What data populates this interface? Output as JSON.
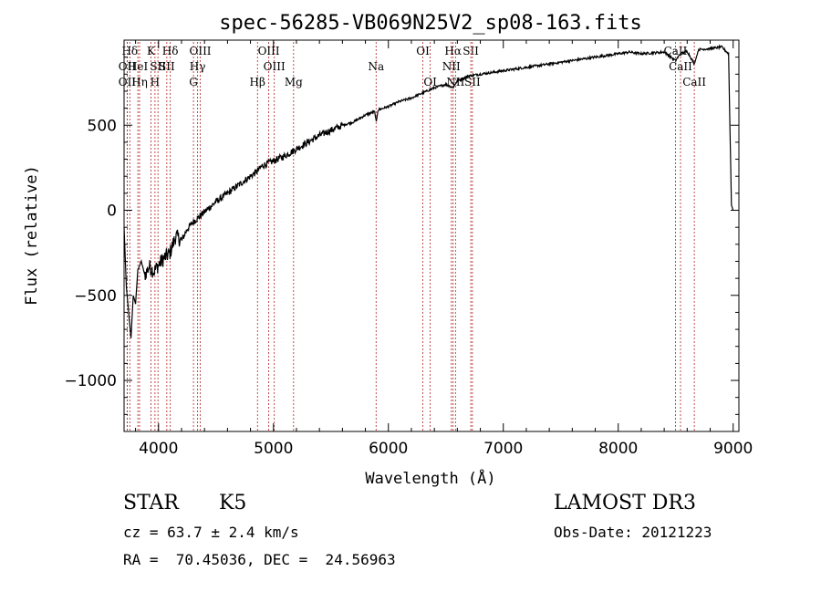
{
  "chart_data": {
    "type": "line",
    "title": "spec-56285-VB069N25V2_sp08-163.fits",
    "xlabel": "Wavelength (Å)",
    "ylabel": "Flux (relative)",
    "xlim": [
      3700,
      9050
    ],
    "ylim": [
      -1300,
      1000
    ],
    "x_ticks": [
      4000,
      5000,
      6000,
      7000,
      8000,
      9000
    ],
    "y_ticks": [
      -1000,
      -500,
      0,
      500
    ],
    "series": [
      {
        "name": "flux",
        "x": [
          3700,
          3720,
          3740,
          3760,
          3780,
          3800,
          3820,
          3850,
          3880,
          3920,
          3960,
          4000,
          4050,
          4100,
          4150,
          4200,
          4250,
          4300,
          4350,
          4400,
          4450,
          4500,
          4600,
          4700,
          4800,
          4860,
          4900,
          5000,
          5100,
          5200,
          5300,
          5400,
          5500,
          5600,
          5700,
          5800,
          5880,
          5895,
          5910,
          6000,
          6100,
          6200,
          6300,
          6400,
          6500,
          6563,
          6600,
          6700,
          6800,
          6900,
          7000,
          7100,
          7200,
          7300,
          7400,
          7500,
          7600,
          7700,
          7800,
          7900,
          8000,
          8100,
          8200,
          8300,
          8400,
          8498,
          8542,
          8600,
          8662,
          8700,
          8800,
          8900,
          8960,
          8985,
          9000
        ],
        "y": [
          -100,
          -450,
          -600,
          -750,
          -500,
          -550,
          -350,
          -300,
          -380,
          -330,
          -360,
          -320,
          -280,
          -250,
          -150,
          -180,
          -110,
          -70,
          -40,
          -10,
          20,
          50,
          100,
          150,
          200,
          230,
          260,
          290,
          320,
          360,
          400,
          440,
          470,
          500,
          520,
          560,
          580,
          520,
          590,
          610,
          640,
          660,
          690,
          720,
          740,
          720,
          760,
          790,
          800,
          810,
          820,
          830,
          840,
          850,
          860,
          870,
          880,
          890,
          900,
          910,
          920,
          930,
          920,
          925,
          930,
          880,
          920,
          935,
          860,
          945,
          950,
          960,
          920,
          30,
          0
        ]
      }
    ],
    "emission_lines": [
      {
        "label": "Hδ",
        "x": 3750,
        "row": 1
      },
      {
        "label": "OII",
        "x": 3727,
        "row": 2
      },
      {
        "label": "OII",
        "x": 3727,
        "row": 3
      },
      {
        "label": "HeI",
        "x": 3820,
        "row": 2
      },
      {
        "label": "Hη",
        "x": 3835,
        "row": 3
      },
      {
        "label": "K",
        "x": 3934,
        "row": 1
      },
      {
        "label": "SII",
        "x": 3995,
        "row": 2
      },
      {
        "label": "H",
        "x": 3969,
        "row": 3
      },
      {
        "label": "Hδ",
        "x": 4102,
        "row": 1
      },
      {
        "label": "SII",
        "x": 4072,
        "row": 2
      },
      {
        "label": "OIII",
        "x": 4363,
        "row": 1
      },
      {
        "label": "Hγ",
        "x": 4340,
        "row": 2
      },
      {
        "label": "G",
        "x": 4304,
        "row": 3
      },
      {
        "label": "Hβ",
        "x": 4861,
        "row": 3
      },
      {
        "label": "OIII",
        "x": 4959,
        "row": 1
      },
      {
        "label": "OIII",
        "x": 5007,
        "row": 2
      },
      {
        "label": "Mg",
        "x": 5175,
        "row": 3
      },
      {
        "label": "Na",
        "x": 5893,
        "row": 2
      },
      {
        "label": "OI",
        "x": 6300,
        "row": 1
      },
      {
        "label": "OI",
        "x": 6364,
        "row": 3
      },
      {
        "label": "Hα",
        "x": 6563,
        "row": 1
      },
      {
        "label": "NII",
        "x": 6548,
        "row": 2
      },
      {
        "label": "NII",
        "x": 6584,
        "row": 3
      },
      {
        "label": "SII",
        "x": 6717,
        "row": 1
      },
      {
        "label": "SII",
        "x": 6731,
        "row": 3
      },
      {
        "label": "CaII",
        "x": 8498,
        "row": 1
      },
      {
        "label": "CaII",
        "x": 8542,
        "row": 2
      },
      {
        "label": "CaII",
        "x": 8662,
        "row": 3
      }
    ]
  },
  "info": {
    "class_label": "STAR",
    "subclass": "K5",
    "survey": "LAMOST DR3",
    "cz": "cz = 63.7 ± 2.4 km/s",
    "obs_date": "Obs-Date: 20121223",
    "coords": "RA =  70.45036, DEC =  24.56963"
  }
}
